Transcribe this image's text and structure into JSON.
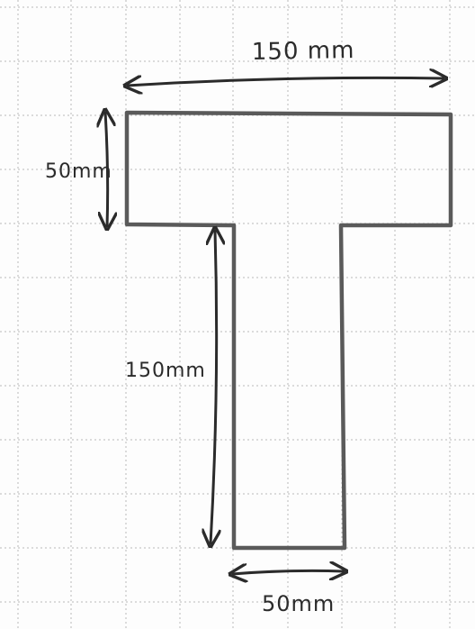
{
  "diagram": {
    "dimensions": {
      "top_width": "150 mm",
      "flange_height": "50mm",
      "web_height": "150mm",
      "web_width": "50mm"
    },
    "colors": {
      "paper": "#fdfdfd",
      "grid": "#b9b9b9",
      "outline": "#5a5a5a",
      "ink": "#2b2b2b"
    }
  }
}
